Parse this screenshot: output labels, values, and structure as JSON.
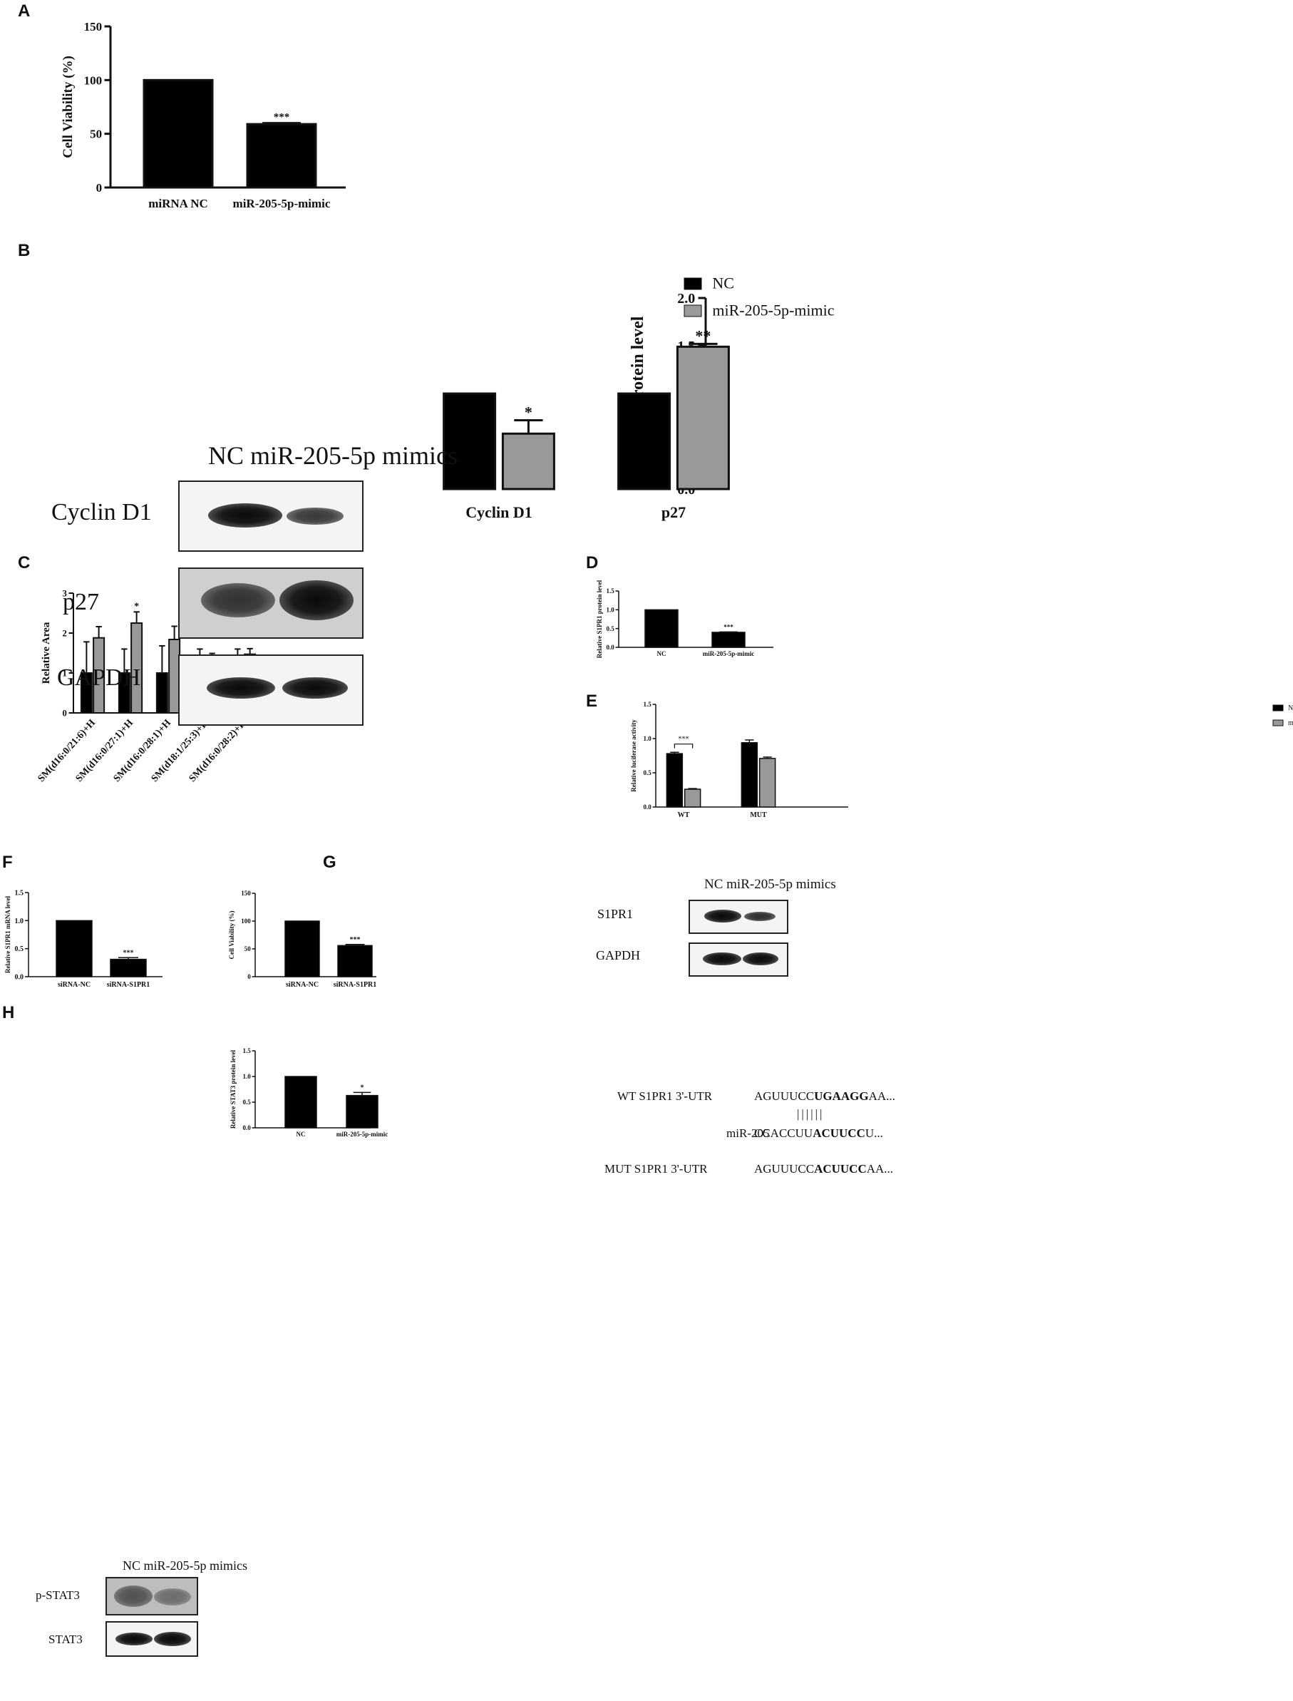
{
  "panels": {
    "A": "A",
    "B": "B",
    "C": "C",
    "D": "D",
    "E": "E",
    "F": "F",
    "G": "G",
    "H": "H"
  },
  "western": {
    "B": {
      "header": "NC  miR-205-5p mimics",
      "rows": [
        "Cyclin D1",
        "p27",
        "GAPDH"
      ]
    },
    "D": {
      "header": "NC  miR-205-5p mimics",
      "rows": [
        "S1PR1",
        "GAPDH"
      ]
    },
    "H": {
      "header": "NC  miR-205-5p mimics",
      "rows": [
        "p-STAT3",
        "STAT3"
      ]
    }
  },
  "sequences": {
    "labels": [
      "WT S1PR1 3'-UTR",
      "miR-205",
      "MUT S1PR1 3'-UTR"
    ],
    "wt": {
      "pre": "AGUUUCC",
      "bold": "UGAAGG",
      "post": "AA..."
    },
    "mir": {
      "pre": "CCACCUU",
      "bold": "ACUUCC",
      "post": "U..."
    },
    "mut": {
      "pre": "AGUUUCC",
      "bold": "ACUUCC",
      "post": "AA..."
    },
    "pairing": "||||||"
  },
  "chart_data": [
    {
      "id": "A",
      "type": "bar",
      "categories": [
        "miRNA NC",
        "miR-205-5p-mimic"
      ],
      "values": [
        100,
        59
      ],
      "errors": [
        0,
        1
      ],
      "sig": [
        "",
        "***"
      ],
      "ylabel": "Cell Viability (%)",
      "ylim": [
        0,
        150
      ],
      "yticks": [
        "0",
        "50",
        "100",
        "150"
      ],
      "colors": [
        "#000000",
        "#000000"
      ]
    },
    {
      "id": "B",
      "type": "bar",
      "categories": [
        "Cyclin D1",
        "p27"
      ],
      "series": [
        {
          "name": "NC",
          "values": [
            1.0,
            1.0
          ],
          "errors": [
            0,
            0
          ],
          "color": "#000000"
        },
        {
          "name": "miR-205-5p-mimic",
          "values": [
            0.58,
            1.49
          ],
          "errors": [
            0.14,
            0.03
          ],
          "color": "#999999"
        }
      ],
      "sig": [
        "*",
        "**"
      ],
      "ylabel": "Relative protein level",
      "ylim": [
        0,
        2.0
      ],
      "yticks": [
        "0.0",
        "0.5",
        "1.0",
        "1.5",
        "2.0"
      ],
      "legend": "top-right"
    },
    {
      "id": "C",
      "type": "bar",
      "categories": [
        "SM(d16:0/21:6)+H",
        "SM(d16:0/27:1)+H",
        "SM(d16:0/28:1)+H",
        "SM(d18:1/25:3)+H",
        "SM(d16:0/28:2)+H"
      ],
      "series": [
        {
          "name": "NC",
          "values": [
            1.0,
            1.0,
            1.0,
            1.0,
            1.0
          ],
          "errors": [
            0.78,
            0.6,
            0.68,
            0.6,
            0.6
          ],
          "color": "#000000"
        },
        {
          "name": "miR-205-5p-mimic",
          "values": [
            1.88,
            2.25,
            1.84,
            1.37,
            1.47
          ],
          "errors": [
            0.28,
            0.28,
            0.33,
            0.12,
            0.14
          ],
          "color": "#999999"
        }
      ],
      "sig": [
        "",
        "*",
        "",
        "",
        ""
      ],
      "ylabel": "Relative Area",
      "ylim": [
        0,
        3
      ],
      "yticks": [
        "0",
        "1",
        "2",
        "3"
      ],
      "legend": "top-right"
    },
    {
      "id": "D",
      "type": "bar",
      "categories": [
        "NC",
        "miR-205-5p-mimic"
      ],
      "values": [
        1.0,
        0.4
      ],
      "errors": [
        0,
        0.01
      ],
      "sig": [
        "",
        "***"
      ],
      "ylabel": "Relative S1PR1 protein level",
      "ylim": [
        0,
        1.5
      ],
      "yticks": [
        "0.0",
        "0.5",
        "1.0",
        "1.5"
      ],
      "colors": [
        "#000000",
        "#000000"
      ]
    },
    {
      "id": "E",
      "type": "bar",
      "categories": [
        "WT",
        "MUT"
      ],
      "series": [
        {
          "name": "NC",
          "values": [
            0.78,
            0.94
          ],
          "errors": [
            0.02,
            0.04
          ],
          "color": "#000000"
        },
        {
          "name": "miR-205-5p-mimic",
          "values": [
            0.26,
            0.71
          ],
          "errors": [
            0.01,
            0.02
          ],
          "color": "#999999"
        }
      ],
      "sig": [
        "***",
        ""
      ],
      "ylabel": "Relative luciferase activity",
      "ylim": [
        0,
        1.5
      ],
      "yticks": [
        "0.0",
        "0.5",
        "1.0",
        "1.5"
      ],
      "legend": "top-right"
    },
    {
      "id": "F",
      "type": "bar",
      "categories": [
        "siRNA-NC",
        "siRNA-S1PR1"
      ],
      "values": [
        1.0,
        0.31
      ],
      "errors": [
        0,
        0.03
      ],
      "sig": [
        "",
        "***"
      ],
      "ylabel": "Relative S1PR1 mRNA level",
      "ylim": [
        0,
        1.5
      ],
      "yticks": [
        "0.0",
        "0.5",
        "1.0",
        "1.5"
      ],
      "colors": [
        "#000000",
        "#000000"
      ]
    },
    {
      "id": "G",
      "type": "bar",
      "categories": [
        "siRNA-NC",
        "siRNA-S1PR1"
      ],
      "values": [
        100,
        56
      ],
      "errors": [
        0,
        2
      ],
      "sig": [
        "",
        "***"
      ],
      "ylabel": "Cell Viability (%)",
      "ylim": [
        0,
        150
      ],
      "yticks": [
        "0",
        "50",
        "100",
        "150"
      ],
      "colors": [
        "#000000",
        "#000000"
      ]
    },
    {
      "id": "H",
      "type": "bar",
      "categories": [
        "NC",
        "miR-205-5p-mimic"
      ],
      "values": [
        1.0,
        0.63
      ],
      "errors": [
        0,
        0.06
      ],
      "sig": [
        "",
        "*"
      ],
      "ylabel": "Relative STAT3 protein level",
      "ylim": [
        0,
        1.5
      ],
      "yticks": [
        "0.0",
        "0.5",
        "1.0",
        "1.5"
      ],
      "colors": [
        "#000000",
        "#000000"
      ]
    }
  ]
}
